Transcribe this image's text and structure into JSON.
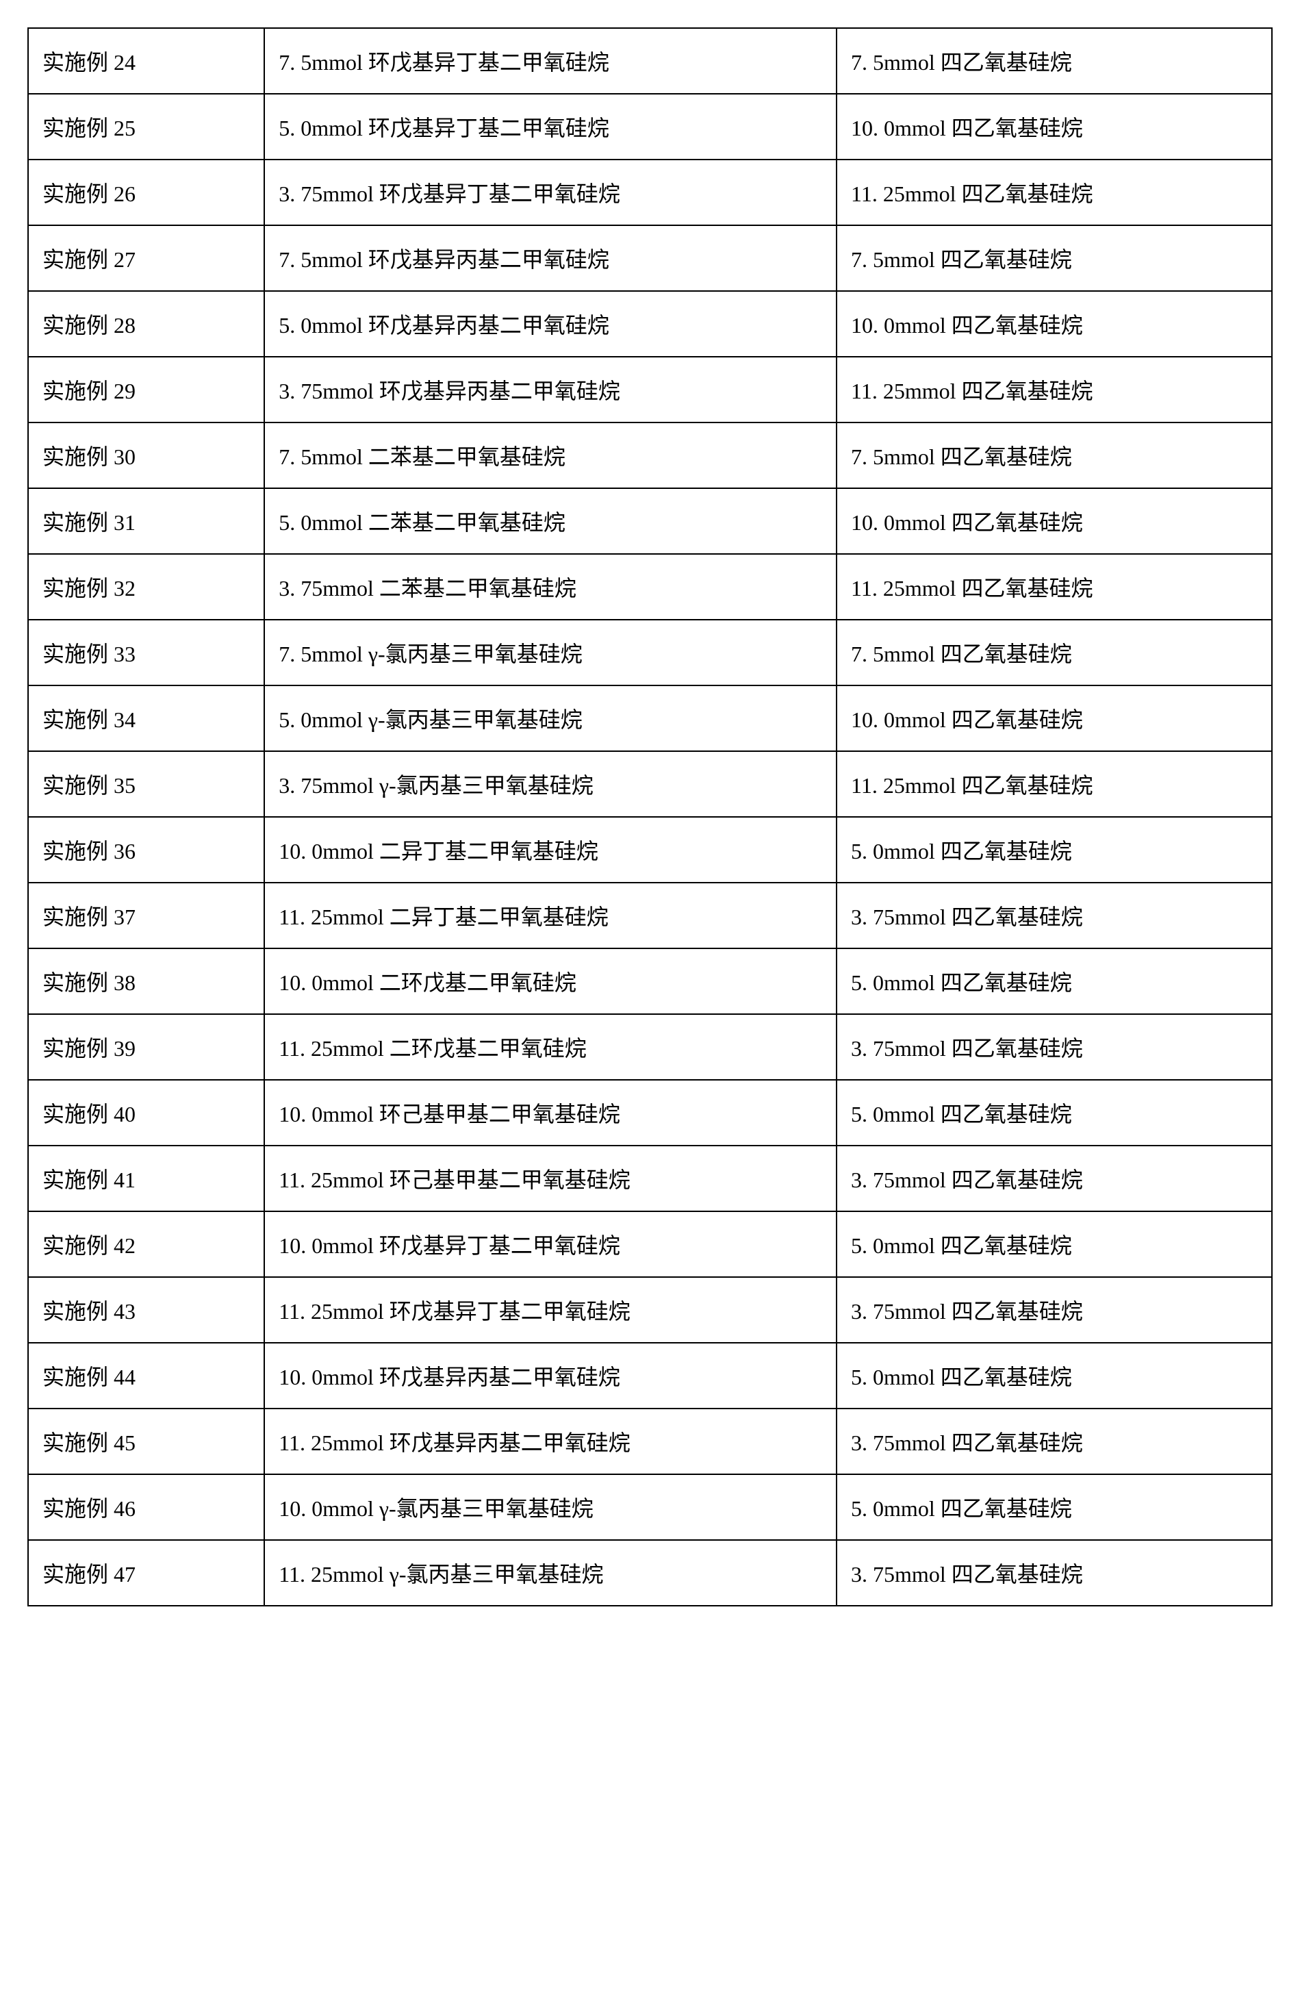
{
  "table": {
    "rows": [
      {
        "col1": "实施例 24",
        "col2": "7. 5mmol 环戊基异丁基二甲氧硅烷",
        "col3": "7. 5mmol 四乙氧基硅烷"
      },
      {
        "col1": "实施例 25",
        "col2": "5. 0mmol 环戊基异丁基二甲氧硅烷",
        "col3": "10. 0mmol 四乙氧基硅烷"
      },
      {
        "col1": "实施例 26",
        "col2": "3. 75mmol 环戊基异丁基二甲氧硅烷",
        "col3": "11. 25mmol 四乙氧基硅烷"
      },
      {
        "col1": "实施例 27",
        "col2": "7. 5mmol 环戊基异丙基二甲氧硅烷",
        "col3": "7. 5mmol 四乙氧基硅烷"
      },
      {
        "col1": "实施例 28",
        "col2": "5. 0mmol 环戊基异丙基二甲氧硅烷",
        "col3": "10. 0mmol 四乙氧基硅烷"
      },
      {
        "col1": "实施例 29",
        "col2": "3. 75mmol 环戊基异丙基二甲氧硅烷",
        "col3": "11. 25mmol 四乙氧基硅烷"
      },
      {
        "col1": "实施例 30",
        "col2": "7. 5mmol 二苯基二甲氧基硅烷",
        "col3": "7. 5mmol 四乙氧基硅烷"
      },
      {
        "col1": "实施例 31",
        "col2": "5. 0mmol 二苯基二甲氧基硅烷",
        "col3": "10. 0mmol 四乙氧基硅烷"
      },
      {
        "col1": "实施例 32",
        "col2": "3. 75mmol 二苯基二甲氧基硅烷",
        "col3": "11. 25mmol 四乙氧基硅烷"
      },
      {
        "col1": "实施例 33",
        "col2": "7. 5mmol γ-氯丙基三甲氧基硅烷",
        "col3": "7. 5mmol 四乙氧基硅烷"
      },
      {
        "col1": "实施例 34",
        "col2": "5. 0mmol γ-氯丙基三甲氧基硅烷",
        "col3": "10. 0mmol 四乙氧基硅烷"
      },
      {
        "col1": "实施例 35",
        "col2": "3. 75mmol γ-氯丙基三甲氧基硅烷",
        "col3": "11. 25mmol 四乙氧基硅烷"
      },
      {
        "col1": "实施例 36",
        "col2": "10. 0mmol 二异丁基二甲氧基硅烷",
        "col3": "5. 0mmol 四乙氧基硅烷"
      },
      {
        "col1": "实施例 37",
        "col2": "11. 25mmol 二异丁基二甲氧基硅烷",
        "col3": "3. 75mmol 四乙氧基硅烷"
      },
      {
        "col1": "实施例 38",
        "col2": "10. 0mmol 二环戊基二甲氧硅烷",
        "col3": "5. 0mmol 四乙氧基硅烷"
      },
      {
        "col1": "实施例 39",
        "col2": "11. 25mmol 二环戊基二甲氧硅烷",
        "col3": "3. 75mmol 四乙氧基硅烷"
      },
      {
        "col1": "实施例 40",
        "col2": "10. 0mmol 环己基甲基二甲氧基硅烷",
        "col3": "5. 0mmol 四乙氧基硅烷"
      },
      {
        "col1": "实施例 41",
        "col2": "11. 25mmol 环己基甲基二甲氧基硅烷",
        "col3": "3. 75mmol 四乙氧基硅烷"
      },
      {
        "col1": "实施例 42",
        "col2": "10. 0mmol 环戊基异丁基二甲氧硅烷",
        "col3": "5. 0mmol 四乙氧基硅烷"
      },
      {
        "col1": "实施例 43",
        "col2": "11. 25mmol 环戊基异丁基二甲氧硅烷",
        "col3": "3. 75mmol 四乙氧基硅烷"
      },
      {
        "col1": "实施例 44",
        "col2": "10. 0mmol 环戊基异丙基二甲氧硅烷",
        "col3": "5. 0mmol 四乙氧基硅烷"
      },
      {
        "col1": "实施例 45",
        "col2": "11. 25mmol 环戊基异丙基二甲氧硅烷",
        "col3": "3. 75mmol 四乙氧基硅烷"
      },
      {
        "col1": "实施例 46",
        "col2": "10. 0mmol γ-氯丙基三甲氧基硅烷",
        "col3": "5. 0mmol 四乙氧基硅烷"
      },
      {
        "col1": "实施例 47",
        "col2": "11. 25mmol γ-氯丙基三甲氧基硅烷",
        "col3": "3. 75mmol 四乙氧基硅烷"
      }
    ]
  }
}
